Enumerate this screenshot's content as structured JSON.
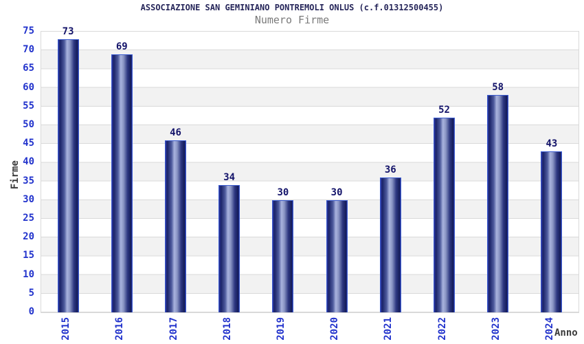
{
  "chart_data": {
    "type": "bar",
    "title": "ASSOCIAZIONE SAN GEMINIANO PONTREMOLI ONLUS (c.f.01312500455)",
    "subtitle": "Numero Firme",
    "xlabel": "Anno",
    "ylabel": "Firme",
    "categories": [
      "2015",
      "2016",
      "2017",
      "2018",
      "2019",
      "2020",
      "2021",
      "2022",
      "2023",
      "2024"
    ],
    "values": [
      73,
      69,
      46,
      34,
      30,
      30,
      36,
      52,
      58,
      43
    ],
    "ylim": [
      0,
      75
    ],
    "ytick_step": 5,
    "grid": true,
    "legend_position": "none",
    "plot_style": "alternating horizontal bands, cylinder-gradient bars, value labels above bars, x labels rotated 90",
    "colors": {
      "bar_dark": "#1b2468",
      "bar_light": "#a9b3de",
      "bar_darkest": "#131b57",
      "bar_border": "#3a5bd0",
      "tick_label": "#2233cc",
      "value_label": "#14146a",
      "title": "#26265a",
      "subtitle": "#7a7a7a",
      "axis_label": "#3a3a3a",
      "band_gray": "#f2f2f2",
      "grid_line": "#d9d9d9"
    }
  }
}
